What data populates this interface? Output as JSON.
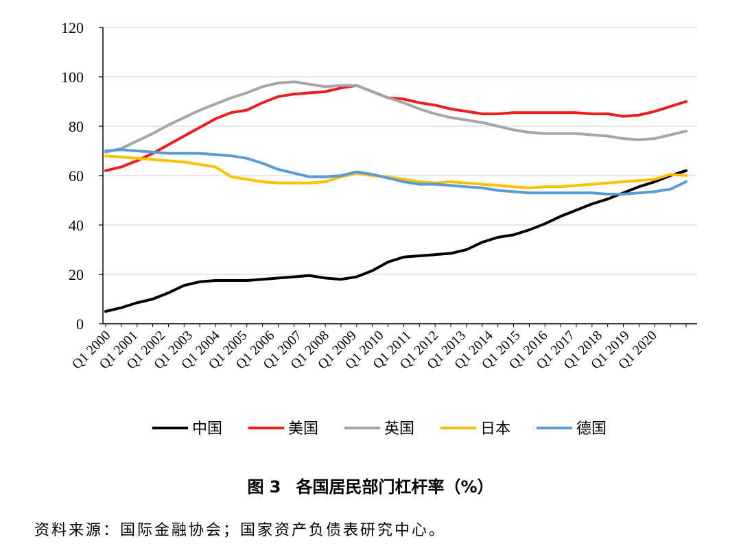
{
  "chart_data": {
    "type": "line",
    "title": "各国居民部门杠杆率（%）",
    "figure_number": "图 3",
    "source": "资料来源：国际金融协会；国家资产负债表研究中心。",
    "ylim": [
      0,
      120
    ],
    "y_ticks": [
      "0",
      "20",
      "40",
      "60",
      "80",
      "100",
      "120"
    ],
    "x_tick_labels": [
      "Q1 2000",
      "Q1 2001",
      "Q1 2002",
      "Q1 2003",
      "Q1 2004",
      "Q1 2005",
      "Q1 2006",
      "Q1 2007",
      "Q1 2008",
      "Q1 2009",
      "Q1 2010",
      "Q1 2011",
      "Q1 2012",
      "Q1 2013",
      "Q1 2014",
      "Q1 2015",
      "Q1 2016",
      "Q1 2017",
      "Q1 2018",
      "Q1 2019",
      "Q1 2020"
    ],
    "grid": "horizontal",
    "legend_position": "bottom",
    "series": [
      {
        "name": "中国",
        "color": "#000000",
        "values": [
          5,
          6.5,
          8.5,
          10,
          12.5,
          15.5,
          17,
          17.5,
          17.5,
          17.5,
          18,
          18.5,
          19,
          19.5,
          18.5,
          18,
          19,
          21.5,
          25,
          27,
          27.5,
          28,
          28.5,
          30,
          33,
          35,
          36,
          38,
          40.5,
          43.5,
          46,
          48.5,
          50.5,
          53,
          55.5,
          57.5,
          60,
          62
        ]
      },
      {
        "name": "美国",
        "color": "#ee1c1c",
        "values": [
          62,
          63.5,
          66,
          69,
          72.5,
          76,
          79.5,
          83,
          85.5,
          86.5,
          89.5,
          92,
          93,
          93.5,
          94,
          95.5,
          96.5,
          94,
          91.5,
          91,
          89.5,
          88.5,
          87,
          86,
          85,
          85,
          85.5,
          85.5,
          85.5,
          85.5,
          85.5,
          85,
          85,
          84,
          84.5,
          86,
          88,
          90
        ]
      },
      {
        "name": "英国",
        "color": "#a6a6a6",
        "values": [
          69.5,
          71,
          74,
          77,
          80.5,
          83.5,
          86.5,
          89,
          91.5,
          93.5,
          96,
          97.5,
          98,
          97,
          96,
          96.5,
          96.5,
          94,
          91.5,
          89.5,
          87,
          85,
          83.5,
          82.5,
          81.5,
          80,
          78.5,
          77.5,
          77,
          77,
          77,
          76.5,
          76,
          75,
          74.5,
          75,
          76.5,
          78
        ]
      },
      {
        "name": "日本",
        "color": "#ffc000",
        "values": [
          68,
          67.5,
          67,
          66.5,
          66,
          65.5,
          64.5,
          63.5,
          59.5,
          58.5,
          57.5,
          57,
          57,
          57,
          57.5,
          59.5,
          61,
          60,
          59.5,
          58.5,
          57.5,
          57,
          57.5,
          57,
          56.5,
          56,
          55.5,
          55,
          55.5,
          55.5,
          56,
          56.5,
          57,
          57.5,
          58,
          58.5,
          60.5,
          60
        ]
      },
      {
        "name": "德国",
        "color": "#5b9bd5",
        "values": [
          70,
          70.5,
          70,
          69.5,
          69,
          69,
          69,
          68.5,
          68,
          67,
          65,
          62.5,
          61,
          59.5,
          59.5,
          60,
          61.5,
          60.5,
          59,
          57.5,
          56.5,
          56.5,
          56,
          55.5,
          55,
          54,
          53.5,
          53,
          53,
          53,
          53,
          53,
          52.5,
          52.5,
          53,
          53.5,
          54.5,
          57.5
        ]
      }
    ]
  }
}
